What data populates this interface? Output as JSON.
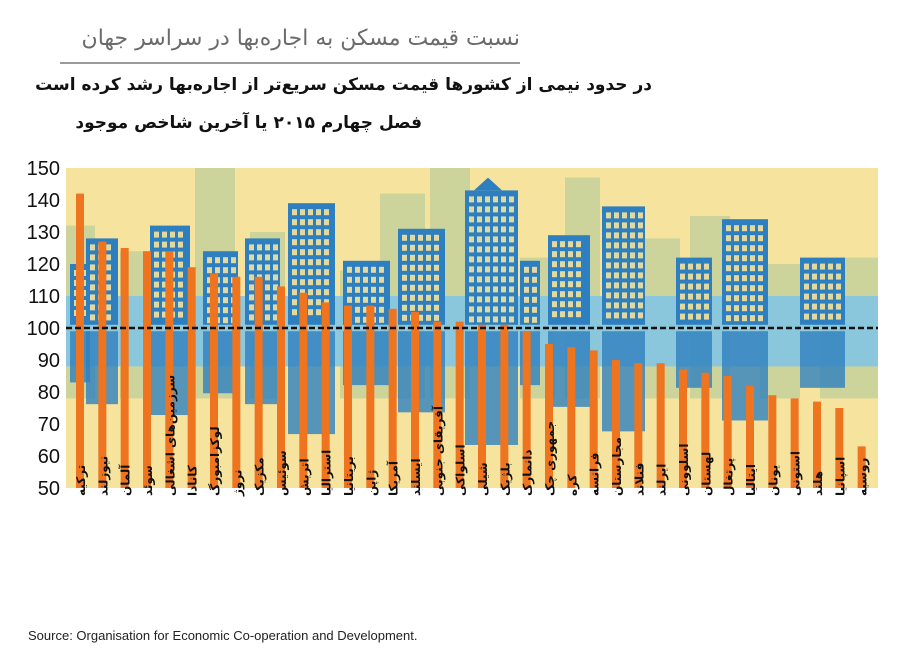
{
  "title": "نسبت قیمت مسکن به اجاره‌بها در سراسر جهان",
  "subtitle_line1": "در حدود نیمی از کشورها قیمت مسکن سریع‌تر از اجاره‌بها رشد کرده است",
  "subtitle_line2": "فصل چهارم ۲۰۱۵ یا آخرین شاخص موجود",
  "source": "Source: Organisation for Economic Co-operation and Development.",
  "colors": {
    "background": "#f6e39d",
    "bar": "#ee7420",
    "band": "#7fc4e8",
    "buildings": "#2e7fbf",
    "buildings_faded": "#a9c99a",
    "reference_line": "#111111"
  },
  "chart_data": {
    "type": "bar",
    "ylim": [
      50,
      150
    ],
    "yticks": [
      50,
      60,
      70,
      80,
      90,
      100,
      110,
      120,
      130,
      140,
      150
    ],
    "reference_value": 100,
    "grid": false,
    "categories": [
      "ترکیه",
      "نیوزلند",
      "آلمان",
      "سوئد",
      "سرزمین‌های اشغالی",
      "کانادا",
      "لوکزامبورگ",
      "نروژ",
      "مکزیک",
      "سوئیس",
      "اتریش",
      "استرالیا",
      "بریتانیا",
      "ژاپن",
      "آمریکا",
      "ایسلند",
      "آفریقای جنوبی",
      "اسلواکی",
      "شیلی",
      "بلژیک",
      "دانمارک",
      "جمهوری چک",
      "کره",
      "فرانسه",
      "مجارستان",
      "فنلاند",
      "ایرلند",
      "اسلوونی",
      "لهستان",
      "پرتغال",
      "ایتالیا",
      "یونان",
      "استونی",
      "هلند",
      "اسپانیا",
      "روسیه"
    ],
    "values": [
      142,
      127,
      125,
      124,
      124,
      119,
      117,
      116,
      116,
      113,
      111,
      108,
      107,
      107,
      106,
      105,
      102,
      102,
      101,
      101,
      99,
      95,
      94,
      93,
      90,
      89,
      89,
      87,
      86,
      85,
      82,
      79,
      78,
      77,
      75,
      63
    ]
  }
}
